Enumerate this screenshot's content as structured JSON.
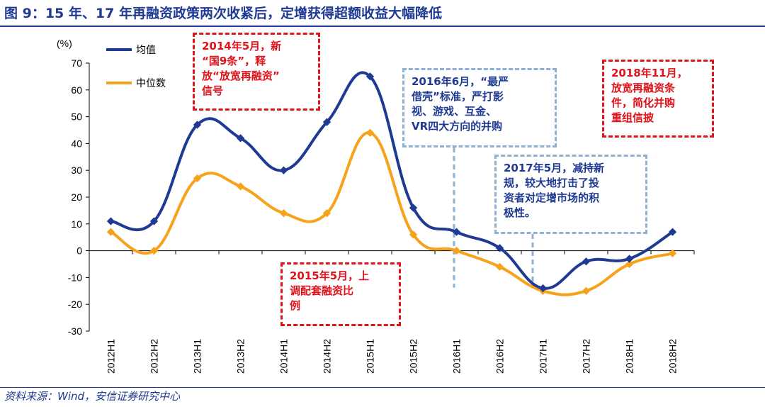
{
  "title": "图 9：15 年、17 年再融资政策两次收紧后，定增获得超额收益大幅降低",
  "source": "资料来源：Wind，安信证券研究中心",
  "chart_data": {
    "type": "line",
    "ylabel": "(%)",
    "ylim": [
      -30,
      70
    ],
    "yticks": [
      70,
      60,
      50,
      40,
      30,
      20,
      10,
      0,
      -10,
      -20,
      -30
    ],
    "categories": [
      "2012H1",
      "2012H2",
      "2013H1",
      "2013H2",
      "2014H1",
      "2014H2",
      "2015H1",
      "2015H2",
      "2016H1",
      "2016H2",
      "2017H1",
      "2017H2",
      "2018H1",
      "2018H2"
    ],
    "series": [
      {
        "name": "均值",
        "color": "#1f3a93",
        "values": [
          11,
          11,
          47,
          42,
          30,
          48,
          65,
          16,
          7,
          1,
          -14,
          -4,
          -3,
          7
        ]
      },
      {
        "name": "中位数",
        "color": "#f7a21b",
        "values": [
          7,
          0,
          27,
          24,
          14,
          14,
          44,
          6,
          0,
          -6,
          -15,
          -15,
          -5,
          -1
        ]
      }
    ],
    "legend": "top-left",
    "annotations": [
      {
        "id": "a1",
        "style": "red",
        "lines": [
          "2014年5月，新",
          "“国9条”，释",
          "放“放宽再融资”",
          "信号"
        ]
      },
      {
        "id": "a2",
        "style": "red",
        "lines": [
          "2015年5月，上",
          "调配套融资比",
          "例"
        ]
      },
      {
        "id": "a3",
        "style": "blue",
        "lines": [
          "2016年6月，“最严",
          "借壳”标准，严打影",
          "视、游戏、互金、",
          "VR四大方向的并购"
        ]
      },
      {
        "id": "a4",
        "style": "blue",
        "lines": [
          "2017年5月，减持新",
          "规，较大地打击了投",
          "资者对定增市场的积",
          "极性。"
        ]
      },
      {
        "id": "a5",
        "style": "red",
        "lines": [
          "2018年11月，",
          "放宽再融资条",
          "件，简化并购",
          "重组信披"
        ]
      }
    ]
  }
}
